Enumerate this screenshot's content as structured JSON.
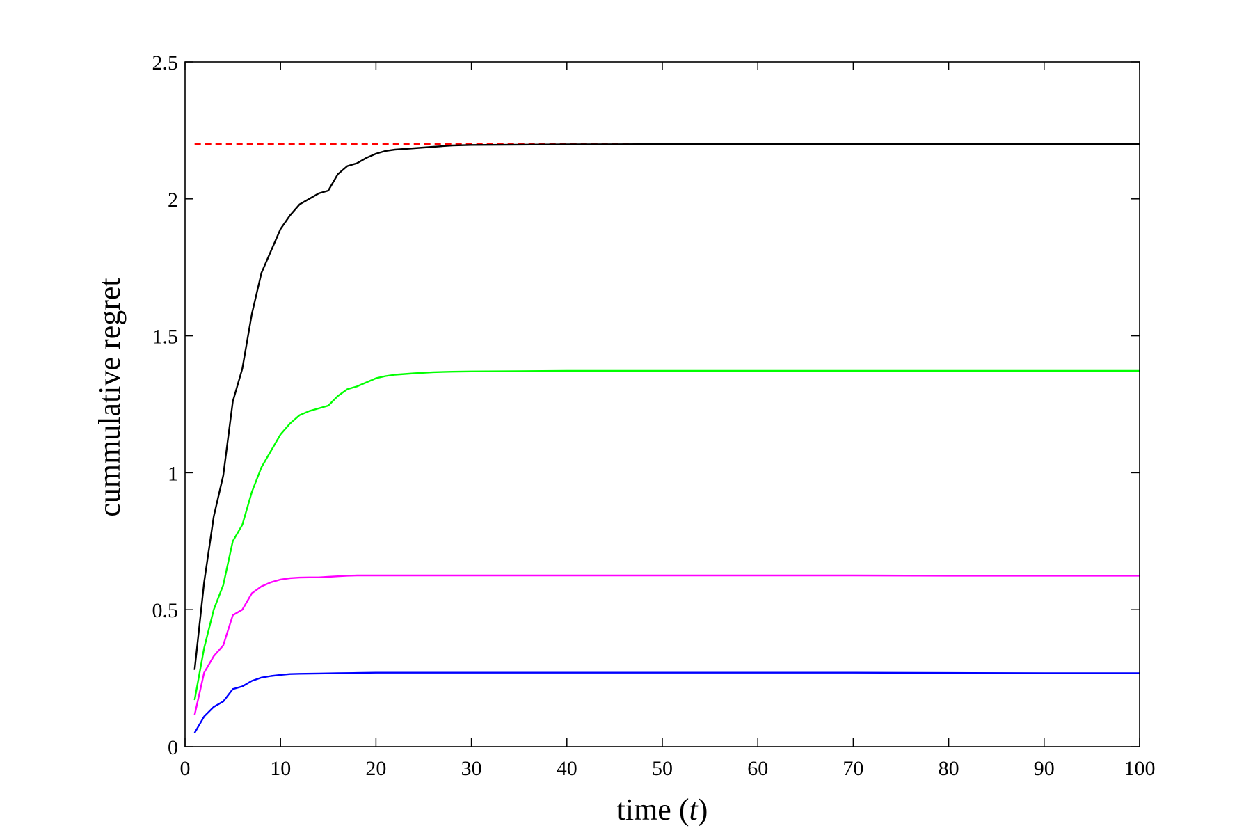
{
  "chart_data": {
    "type": "line",
    "title": "",
    "xlabel": "time (t)",
    "xlabel_parts": {
      "pre": "time (",
      "var": "t",
      "post": ")"
    },
    "ylabel": "cummulative regret",
    "xlim": [
      0,
      100
    ],
    "ylim": [
      0,
      2.5
    ],
    "xticks": [
      0,
      10,
      20,
      30,
      40,
      50,
      60,
      70,
      80,
      90,
      100
    ],
    "xtick_labels": [
      "0",
      "10",
      "20",
      "30",
      "40",
      "50",
      "60",
      "70",
      "80",
      "90",
      "100"
    ],
    "yticks": [
      0,
      0.5,
      1,
      1.5,
      2,
      2.5
    ],
    "ytick_labels": [
      "0",
      "0.5",
      "1",
      "1.5",
      "2",
      "2.5"
    ],
    "grid": false,
    "legend": "none",
    "series": [
      {
        "color": "#ff0000",
        "style": "dashed",
        "x": [
          1,
          100
        ],
        "y": [
          2.2,
          2.2
        ]
      },
      {
        "color": "#000000",
        "style": "solid",
        "x": [
          1,
          2,
          3,
          4,
          5,
          6,
          7,
          8,
          9,
          10,
          11,
          12,
          13,
          14,
          15,
          16,
          17,
          18,
          19,
          20,
          21,
          22,
          24,
          26,
          28,
          30,
          35,
          40,
          50,
          60,
          70,
          80,
          90,
          100
        ],
        "y": [
          0.28,
          0.6,
          0.84,
          0.99,
          1.26,
          1.38,
          1.58,
          1.73,
          1.81,
          1.89,
          1.94,
          1.98,
          2.0,
          2.02,
          2.03,
          2.09,
          2.12,
          2.13,
          2.15,
          2.165,
          2.175,
          2.18,
          2.185,
          2.19,
          2.195,
          2.197,
          2.198,
          2.199,
          2.2,
          2.2,
          2.2,
          2.2,
          2.2,
          2.2
        ]
      },
      {
        "color": "#00ff00",
        "style": "solid",
        "x": [
          1,
          2,
          3,
          4,
          5,
          6,
          7,
          8,
          9,
          10,
          11,
          12,
          13,
          14,
          15,
          16,
          17,
          18,
          19,
          20,
          21,
          22,
          24,
          26,
          28,
          30,
          35,
          40,
          50,
          60,
          70,
          80,
          90,
          100
        ],
        "y": [
          0.17,
          0.36,
          0.5,
          0.59,
          0.75,
          0.81,
          0.93,
          1.02,
          1.08,
          1.14,
          1.18,
          1.21,
          1.225,
          1.235,
          1.245,
          1.28,
          1.305,
          1.315,
          1.33,
          1.345,
          1.353,
          1.358,
          1.363,
          1.367,
          1.369,
          1.37,
          1.371,
          1.372,
          1.372,
          1.372,
          1.372,
          1.372,
          1.372,
          1.372
        ]
      },
      {
        "color": "#ff00ff",
        "style": "solid",
        "x": [
          1,
          2,
          3,
          4,
          5,
          6,
          7,
          8,
          9,
          10,
          11,
          12,
          13,
          14,
          15,
          16,
          17,
          18,
          20,
          25,
          30,
          40,
          50,
          60,
          70,
          80,
          90,
          100
        ],
        "y": [
          0.115,
          0.27,
          0.33,
          0.37,
          0.48,
          0.5,
          0.56,
          0.585,
          0.6,
          0.61,
          0.615,
          0.617,
          0.618,
          0.618,
          0.62,
          0.622,
          0.624,
          0.625,
          0.625,
          0.625,
          0.625,
          0.625,
          0.625,
          0.625,
          0.625,
          0.624,
          0.624,
          0.624
        ]
      },
      {
        "color": "#0000ff",
        "style": "solid",
        "x": [
          1,
          2,
          3,
          4,
          5,
          6,
          7,
          8,
          9,
          10,
          11,
          12,
          14,
          16,
          18,
          20,
          30,
          40,
          50,
          60,
          70,
          80,
          90,
          100
        ],
        "y": [
          0.05,
          0.11,
          0.145,
          0.165,
          0.21,
          0.22,
          0.24,
          0.252,
          0.258,
          0.262,
          0.265,
          0.266,
          0.267,
          0.268,
          0.269,
          0.27,
          0.27,
          0.27,
          0.27,
          0.27,
          0.27,
          0.269,
          0.268,
          0.268
        ]
      }
    ]
  }
}
